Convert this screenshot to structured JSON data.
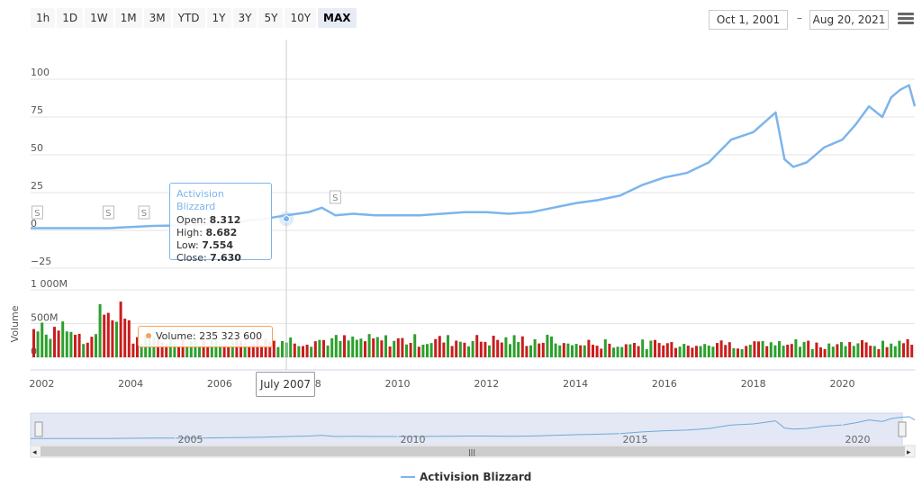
{
  "zoom": {
    "buttons": [
      "1h",
      "1D",
      "1W",
      "1M",
      "3M",
      "YTD",
      "1Y",
      "3Y",
      "5Y",
      "10Y",
      "MAX"
    ],
    "active": "MAX"
  },
  "range": {
    "from": "Oct 1, 2001",
    "separator": "–",
    "to": "Aug 20, 2021"
  },
  "tooltip": {
    "title": "Activision Blizzard",
    "open_label": "Open:",
    "open": "8.312",
    "high_label": "High:",
    "high": "8.682",
    "low_label": "Low:",
    "low": "7.554",
    "close_label": "Close:",
    "close": "7.630"
  },
  "volume_tooltip": {
    "label": "Volume:",
    "value": "235 323 600"
  },
  "crosshair_date": "July 2007",
  "legend": {
    "series_name": "Activision Blizzard"
  },
  "colors": {
    "price": "#7cb5ec",
    "vol_up": "#2ca02c",
    "vol_down": "#c91d1d",
    "navigator": "#ccd6eb"
  },
  "chart_data": {
    "type": "line",
    "series": [
      {
        "name": "Activision Blizzard",
        "x": [
          2001.75,
          2002.5,
          2003.5,
          2004.5,
          2005.5,
          2006.5,
          2007.0,
          2007.5,
          2008.0,
          2008.3,
          2008.6,
          2009.0,
          2009.5,
          2010.0,
          2010.5,
          2011.0,
          2011.5,
          2012.0,
          2012.5,
          2013.0,
          2013.5,
          2014.0,
          2014.5,
          2015.0,
          2015.5,
          2016.0,
          2016.5,
          2017.0,
          2017.5,
          2018.0,
          2018.5,
          2018.7,
          2018.9,
          2019.2,
          2019.6,
          2020.0,
          2020.3,
          2020.6,
          2020.9,
          2021.1,
          2021.3,
          2021.5,
          2021.63
        ],
        "values": [
          1.5,
          1.5,
          1.5,
          3,
          3.5,
          6,
          7.6,
          10,
          12,
          15,
          10,
          11,
          10,
          10,
          10,
          11,
          12,
          12,
          11,
          12,
          15,
          18,
          20,
          23,
          30,
          35,
          38,
          45,
          60,
          65,
          78,
          47,
          42,
          45,
          55,
          60,
          70,
          82,
          75,
          88,
          93,
          96,
          82
        ]
      }
    ],
    "volume": {
      "name": "Volume",
      "ylim": [
        0,
        1000000000
      ],
      "yticks": [
        "0",
        "500M",
        "1 000M"
      ]
    },
    "xticks": [
      "2002",
      "2004",
      "2006",
      "2008",
      "2010",
      "2012",
      "2014",
      "2016",
      "2018",
      "2020"
    ],
    "xlim": [
      2001.75,
      2021.63
    ],
    "ylim": [
      -25,
      100
    ],
    "yticks": [
      "−25",
      "0",
      "25",
      "50",
      "75",
      "100"
    ],
    "navigator_ticks": [
      "2005",
      "2010",
      "2015",
      "2020"
    ],
    "flags": [
      {
        "x": 2001.9,
        "label": "S"
      },
      {
        "x": 2003.5,
        "label": "S"
      },
      {
        "x": 2004.3,
        "label": "S"
      },
      {
        "x": 2008.6,
        "label": "S"
      }
    ],
    "grid": true,
    "legend_position": "bottom"
  }
}
